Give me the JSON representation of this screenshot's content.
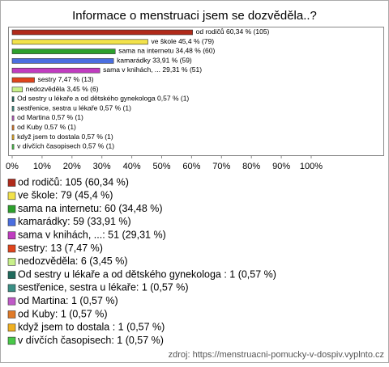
{
  "chart_data": {
    "type": "bar",
    "orientation": "horizontal",
    "title": "Informace o menstruaci jsem se dozvěděla..?",
    "categories": [
      "od rodičů",
      "ve škole",
      "sama na internetu",
      "kamarádky",
      "sama v knihách, ...",
      "sestry",
      "nedozvěděla",
      "Od sestry u lékaře a od dětského gynekologa ",
      "sestřenice, sestra u lékaře",
      "od Martina",
      "od Kuby",
      "když jsem to dostala ",
      "v dívčích časopisech"
    ],
    "values": [
      60.34,
      45.4,
      34.48,
      33.91,
      29.31,
      7.47,
      3.45,
      0.57,
      0.57,
      0.57,
      0.57,
      0.57,
      0.57
    ],
    "value_labels": [
      "60,34 % (105)",
      "45,4 % (79)",
      "34,48 % (60)",
      "33,91 % (59)",
      "29,31 % (51)",
      "7,47 % (13)",
      "3,45 % (6)",
      "0,57 % (1)",
      "0,57 % (1)",
      "0,57 % (1)",
      "0,57 % (1)",
      "0,57 % (1)",
      "0,57 % (1)"
    ],
    "colors": [
      "#b02a1a",
      "#f2e24a",
      "#2ca02c",
      "#4a6ee0",
      "#c03cc0",
      "#e0441c",
      "#c8f08a",
      "#1f6a5c",
      "#3a8f85",
      "#c05ac8",
      "#e07a28",
      "#f0b020",
      "#48c848"
    ],
    "legend_labels": [
      "od rodičů: 105 (60,34 %)",
      "ve škole: 79 (45,4 %)",
      "sama na internetu: 60 (34,48 %)",
      "kamarádky: 59 (33,91 %)",
      "sama v knihách, ...: 51 (29,31 %)",
      "sestry: 13 (7,47 %)",
      "nedozvěděla: 6 (3,45 %)",
      "Od sestry u lékaře a od dětského gynekologa : 1 (0,57 %)",
      "sestřenice, sestra u lékaře: 1 (0,57 %)",
      "od Martina: 1 (0,57 %)",
      "od Kuby: 1 (0,57 %)",
      "když jsem to dostala : 1 (0,57 %)",
      "v dívčích časopisech: 1 (0,57 %)"
    ],
    "xlim": [
      0,
      100
    ],
    "xticks": [
      {
        "value": 0,
        "label": "0%"
      },
      {
        "value": 10,
        "label": "10%"
      },
      {
        "value": 20,
        "label": "20%"
      },
      {
        "value": 30,
        "label": "30%"
      },
      {
        "value": 40,
        "label": "40%"
      },
      {
        "value": 50,
        "label": "50%"
      },
      {
        "value": 60,
        "label": "60%"
      },
      {
        "value": 70,
        "label": "70%"
      },
      {
        "value": 80,
        "label": "80%"
      },
      {
        "value": 90,
        "label": "90%"
      },
      {
        "value": 100,
        "label": "100%"
      }
    ],
    "source": "zdroj: https://menstruacni-pomucky-v-dospiv.vyplnto.cz"
  }
}
